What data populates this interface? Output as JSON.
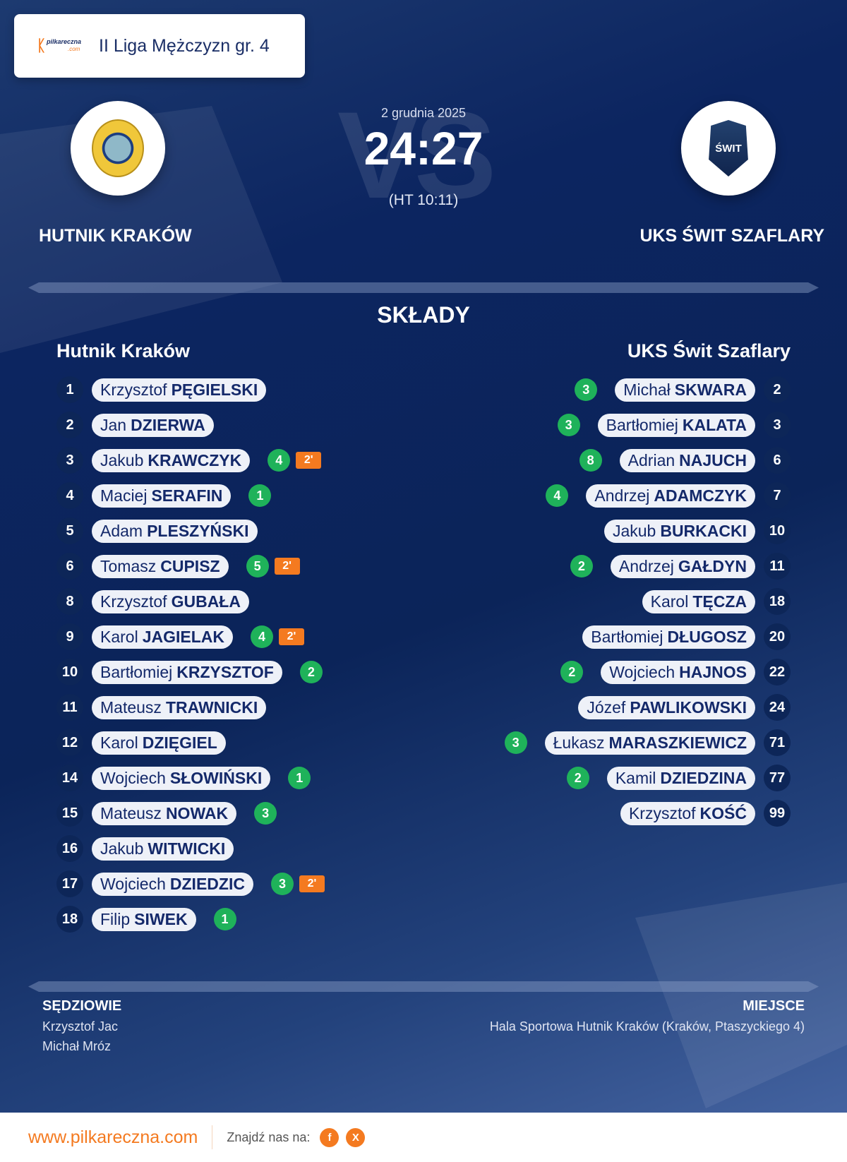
{
  "league": "II Liga Mężczyzn gr. 4",
  "logo_text": "pilkareczna.com",
  "date": "2 grudnia 2025",
  "score": "24:27",
  "halftime": "(HT 10:11)",
  "vs": "VS",
  "home": {
    "name_upper": "HUTNIK KRAKÓW",
    "name": "Hutnik Kraków"
  },
  "away": {
    "name_upper": "UKS ŚWIT SZAFLARY",
    "name": "UKS Świt Szaflary",
    "crest_text": "ŚWIT"
  },
  "section_title": "SKŁADY",
  "home_players": [
    {
      "num": "1",
      "first": "Krzysztof",
      "last": "PĘGIELSKI",
      "goals": null,
      "pen": null
    },
    {
      "num": "2",
      "first": "Jan",
      "last": "DZIERWA",
      "goals": null,
      "pen": null
    },
    {
      "num": "3",
      "first": "Jakub",
      "last": "KRAWCZYK",
      "goals": "4",
      "pen": "2'"
    },
    {
      "num": "4",
      "first": "Maciej",
      "last": "SERAFIN",
      "goals": "1",
      "pen": null
    },
    {
      "num": "5",
      "first": "Adam",
      "last": "PLESZYŃSKI",
      "goals": null,
      "pen": null
    },
    {
      "num": "6",
      "first": "Tomasz",
      "last": "CUPISZ",
      "goals": "5",
      "pen": "2'"
    },
    {
      "num": "8",
      "first": "Krzysztof",
      "last": "GUBAŁA",
      "goals": null,
      "pen": null
    },
    {
      "num": "9",
      "first": "Karol",
      "last": "JAGIELAK",
      "goals": "4",
      "pen": "2'"
    },
    {
      "num": "10",
      "first": "Bartłomiej",
      "last": "KRZYSZTOF",
      "goals": "2",
      "pen": null
    },
    {
      "num": "11",
      "first": "Mateusz",
      "last": "TRAWNICKI",
      "goals": null,
      "pen": null
    },
    {
      "num": "12",
      "first": "Karol",
      "last": "DZIĘGIEL",
      "goals": null,
      "pen": null
    },
    {
      "num": "14",
      "first": "Wojciech",
      "last": "SŁOWIŃSKI",
      "goals": "1",
      "pen": null
    },
    {
      "num": "15",
      "first": "Mateusz",
      "last": "NOWAK",
      "goals": "3",
      "pen": null
    },
    {
      "num": "16",
      "first": "Jakub",
      "last": "WITWICKI",
      "goals": null,
      "pen": null
    },
    {
      "num": "17",
      "first": "Wojciech",
      "last": "DZIEDZIC",
      "goals": "3",
      "pen": "2'"
    },
    {
      "num": "18",
      "first": "Filip",
      "last": "SIWEK",
      "goals": "1",
      "pen": null
    }
  ],
  "away_players": [
    {
      "num": "2",
      "first": "Michał",
      "last": "SKWARA",
      "goals": "3"
    },
    {
      "num": "3",
      "first": "Bartłomiej",
      "last": "KALATA",
      "goals": "3"
    },
    {
      "num": "6",
      "first": "Adrian",
      "last": "NAJUCH",
      "goals": "8"
    },
    {
      "num": "7",
      "first": "Andrzej",
      "last": "ADAMCZYK",
      "goals": "4"
    },
    {
      "num": "10",
      "first": "Jakub",
      "last": "BURKACKI",
      "goals": null
    },
    {
      "num": "11",
      "first": "Andrzej",
      "last": "GAŁDYN",
      "goals": "2"
    },
    {
      "num": "18",
      "first": "Karol",
      "last": "TĘCZA",
      "goals": null
    },
    {
      "num": "20",
      "first": "Bartłomiej",
      "last": "DŁUGOSZ",
      "goals": null
    },
    {
      "num": "22",
      "first": "Wojciech",
      "last": "HAJNOS",
      "goals": "2"
    },
    {
      "num": "24",
      "first": "Józef",
      "last": "PAWLIKOWSKI",
      "goals": null
    },
    {
      "num": "71",
      "first": "Łukasz",
      "last": "MARASZKIEWICZ",
      "goals": "3"
    },
    {
      "num": "77",
      "first": "Kamil",
      "last": "DZIEDZINA",
      "goals": "2"
    },
    {
      "num": "99",
      "first": "Krzysztof",
      "last": "KOŚĆ",
      "goals": null
    }
  ],
  "referees": {
    "label": "SĘDZIOWIE",
    "names": [
      "Krzysztof Jac",
      "Michał Mróz"
    ]
  },
  "venue": {
    "label": "MIEJSCE",
    "value": "Hala Sportowa Hutnik Kraków (Kraków, Ptaszyckiego 4)"
  },
  "footer": {
    "site": "www.pilkareczna.com",
    "find": "Znajdź nas na:",
    "facebook": "f",
    "x": "X"
  },
  "colors": {
    "accent": "#f47a20",
    "goal": "#1fb25a",
    "navy": "#0b2459"
  }
}
